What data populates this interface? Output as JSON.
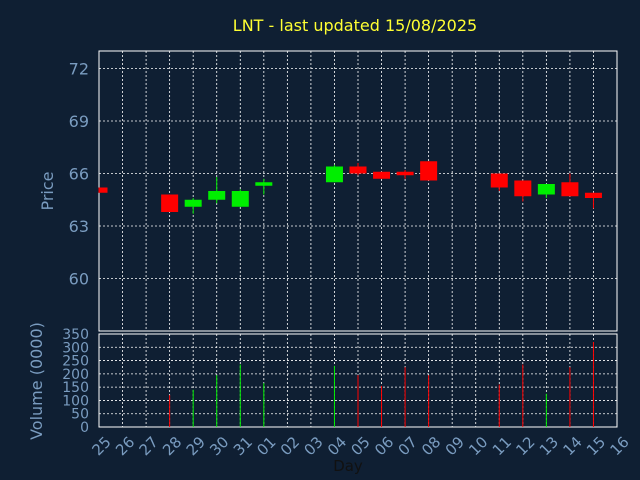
{
  "chart_data": {
    "type": "candlestick",
    "title": "LNT - last updated 15/08/2025",
    "ylabel": "Price",
    "volume_label": "Volume (0000)",
    "xlabel": "Day",
    "ylim": [
      57,
      73
    ],
    "yticks": [
      "60",
      "63",
      "66",
      "69",
      "72"
    ],
    "volume_ylim": [
      0,
      350
    ],
    "volume_ticks": [
      "0",
      "50",
      "100",
      "150",
      "200",
      "250",
      "300",
      "350"
    ],
    "grid": true,
    "colors": {
      "up": "#00ee00",
      "down": "#ff0000",
      "background": "#0f1f33",
      "grid": "#ffffff",
      "text": "#7a9cc0",
      "title": "#ffff33"
    },
    "days": [
      "25",
      "26",
      "27",
      "28",
      "29",
      "30",
      "31",
      "01",
      "02",
      "03",
      "04",
      "05",
      "06",
      "07",
      "08",
      "09",
      "10",
      "11",
      "12",
      "13",
      "14",
      "15",
      "16"
    ],
    "candles": [
      {
        "day": "25",
        "open": 65.2,
        "high": 65.2,
        "low": 64.9,
        "close": 64.9,
        "volume": 0
      },
      {
        "day": "28",
        "open": 64.8,
        "high": 64.8,
        "low": 63.8,
        "close": 63.8,
        "volume": 120
      },
      {
        "day": "29",
        "open": 64.1,
        "high": 64.6,
        "low": 63.7,
        "close": 64.5,
        "volume": 140
      },
      {
        "day": "30",
        "open": 64.5,
        "high": 65.8,
        "low": 64.3,
        "close": 65.0,
        "volume": 195
      },
      {
        "day": "31",
        "open": 64.1,
        "high": 65.1,
        "low": 64.1,
        "close": 65.0,
        "volume": 235
      },
      {
        "day": "01",
        "open": 65.3,
        "high": 65.7,
        "low": 64.8,
        "close": 65.5,
        "volume": 165
      },
      {
        "day": "04",
        "open": 65.5,
        "high": 66.5,
        "low": 65.5,
        "close": 66.4,
        "volume": 230
      },
      {
        "day": "05",
        "open": 66.4,
        "high": 66.6,
        "low": 65.9,
        "close": 66.0,
        "volume": 195
      },
      {
        "day": "06",
        "open": 66.1,
        "high": 66.1,
        "low": 65.7,
        "close": 65.7,
        "volume": 155
      },
      {
        "day": "07",
        "open": 66.1,
        "high": 66.2,
        "low": 65.7,
        "close": 65.9,
        "volume": 225
      },
      {
        "day": "08",
        "open": 66.7,
        "high": 66.7,
        "low": 65.6,
        "close": 65.6,
        "volume": 195
      },
      {
        "day": "11",
        "open": 66.0,
        "high": 66.0,
        "low": 65.0,
        "close": 65.2,
        "volume": 160
      },
      {
        "day": "12",
        "open": 65.6,
        "high": 65.6,
        "low": 64.4,
        "close": 64.7,
        "volume": 235
      },
      {
        "day": "13",
        "open": 64.8,
        "high": 65.4,
        "low": 64.6,
        "close": 65.4,
        "volume": 125
      },
      {
        "day": "14",
        "open": 65.5,
        "high": 66.0,
        "low": 64.7,
        "close": 64.7,
        "volume": 225
      },
      {
        "day": "15",
        "open": 64.9,
        "high": 64.9,
        "low": 64.0,
        "close": 64.6,
        "volume": 320
      }
    ]
  }
}
